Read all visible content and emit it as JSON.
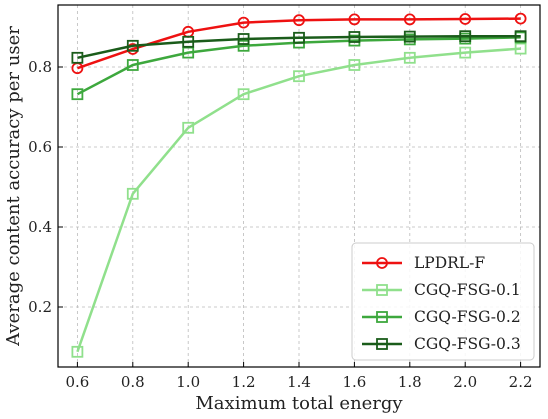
{
  "chart_data": {
    "type": "line",
    "title": "",
    "xlabel": "Maximum total energy",
    "ylabel": "Average content accuracy per user",
    "x": [
      0.6,
      0.8,
      1.0,
      1.2,
      1.4,
      1.6,
      1.8,
      2.0,
      2.2
    ],
    "x_ticks": [
      "0.6",
      "0.8",
      "1.0",
      "1.2",
      "1.4",
      "1.6",
      "1.8",
      "2.0",
      "2.2"
    ],
    "y_ticks": [
      "0.2",
      "0.4",
      "0.6",
      "0.8"
    ],
    "xlim": [
      0.53,
      2.27
    ],
    "ylim": [
      0.05,
      0.955
    ],
    "grid": true,
    "legend_position": "lower-right",
    "series": [
      {
        "name": "LPDRL-F",
        "color": "#ee1111",
        "marker": "circle",
        "values": [
          0.797,
          0.845,
          0.888,
          0.911,
          0.917,
          0.919,
          0.919,
          0.92,
          0.921
        ]
      },
      {
        "name": "CGQ-FSG-0.1",
        "color": "#90e08c",
        "marker": "square",
        "values": [
          0.088,
          0.483,
          0.648,
          0.732,
          0.777,
          0.805,
          0.823,
          0.836,
          0.846
        ]
      },
      {
        "name": "CGQ-FSG-0.2",
        "color": "#3da83d",
        "marker": "square",
        "values": [
          0.732,
          0.805,
          0.836,
          0.853,
          0.861,
          0.866,
          0.869,
          0.871,
          0.874
        ]
      },
      {
        "name": "CGQ-FSG-0.3",
        "color": "#1a5c1a",
        "marker": "square",
        "values": [
          0.823,
          0.853,
          0.863,
          0.87,
          0.873,
          0.875,
          0.876,
          0.877,
          0.877
        ]
      }
    ]
  }
}
